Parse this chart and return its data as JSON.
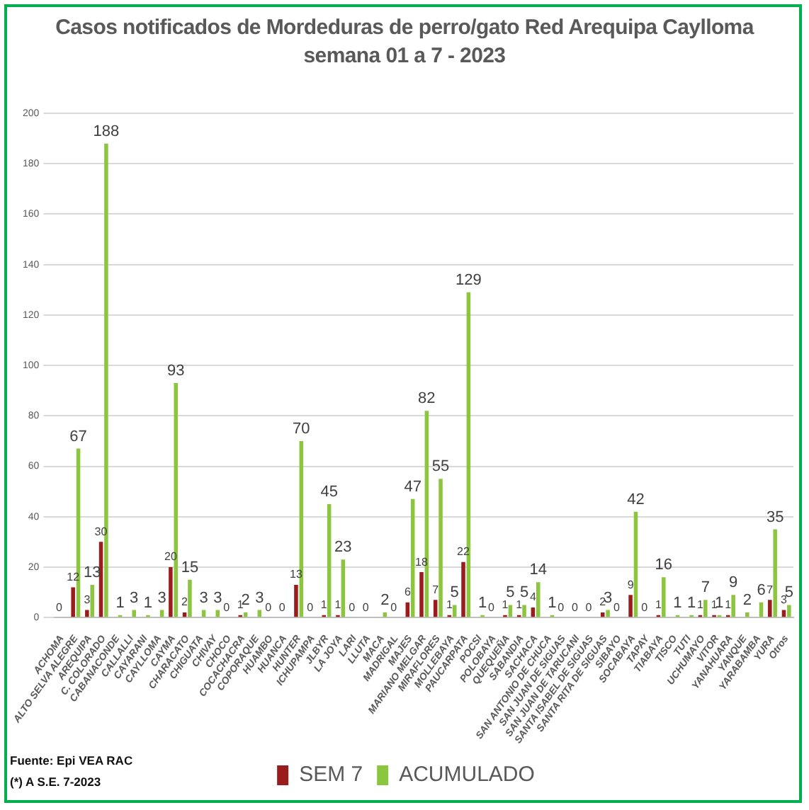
{
  "chart_data": {
    "type": "bar",
    "title": "Casos notificados de Mordeduras de perro/gato Red Arequipa Caylloma",
    "subtitle": "semana 01 a 7 - 2023",
    "categories": [
      "ACHOMA",
      "ALTO SELVA ALEGRE",
      "AREQUIPA",
      "C. COLORADO",
      "CABANACONDE",
      "CALLALLI",
      "CAYARANI",
      "CAYLLOMA",
      "CAYMA",
      "CHARACATO",
      "CHIGUATA",
      "CHIVAY",
      "CHOCO",
      "COCACHACRA",
      "COPORAQUE",
      "HUAMBO",
      "HUANCA",
      "HUNTER",
      "ICHUPAMPA",
      "JLBYR",
      "LA JOYA",
      "LARI",
      "LLUTA",
      "MACA",
      "MADRIGAL",
      "MAJES",
      "MARIANO MELGAR",
      "MIRAFLORES",
      "MOLLEBAYA",
      "PAUCARPATA",
      "POCSI",
      "POLOBAYA",
      "QUEQUEÑA",
      "SABANDIA",
      "SACHACA",
      "SAN ANTONIO DE CHUCA",
      "SAN JUAN DE SIGUAS",
      "SAN JUAN DE TARUCANI",
      "SANTA ISABEL DE SIGUAS",
      "SANTA RITA DE SIGUAS",
      "SIBAYO",
      "SOCABAYA",
      "TAPAY",
      "TIABAYA",
      "TISCO",
      "TUTI",
      "UCHUMAYO",
      "VITOR",
      "YANAHUARA",
      "YANQUE",
      "YARABAMBA",
      "YURA",
      "Otros"
    ],
    "series": [
      {
        "name": "SEM 7",
        "color": "#9b1c1c",
        "values": [
          0,
          12,
          3,
          30,
          0,
          0,
          0,
          0,
          20,
          2,
          0,
          0,
          0,
          1,
          0,
          0,
          0,
          13,
          0,
          1,
          1,
          0,
          0,
          0,
          0,
          6,
          18,
          7,
          1,
          22,
          0,
          0,
          1,
          1,
          4,
          0,
          0,
          0,
          0,
          2,
          0,
          9,
          0,
          1,
          0,
          0,
          1,
          1,
          1,
          0,
          0,
          7,
          3
        ],
        "value_labels": [
          "0",
          "12",
          "3",
          "30",
          null,
          null,
          null,
          null,
          "20",
          "2",
          null,
          null,
          "0",
          "1",
          null,
          "0",
          "0",
          "13",
          "0",
          "1",
          "1",
          "0",
          "0",
          null,
          "0",
          "6",
          "18",
          "7",
          "1",
          "22",
          null,
          "0",
          "1",
          "1",
          "4",
          null,
          "0",
          "0",
          "0",
          "2",
          "0",
          "9",
          "0",
          "1",
          null,
          null,
          "1",
          "1",
          "1",
          null,
          null,
          "7",
          "3"
        ]
      },
      {
        "name": "ACUMULADO",
        "color": "#8cc63f",
        "values": [
          0,
          67,
          13,
          188,
          1,
          3,
          1,
          3,
          93,
          15,
          3,
          3,
          0,
          2,
          3,
          0,
          0,
          70,
          0,
          45,
          23,
          0,
          0,
          2,
          0,
          47,
          82,
          55,
          5,
          129,
          1,
          0,
          5,
          5,
          14,
          1,
          0,
          0,
          0,
          3,
          0,
          42,
          0,
          16,
          1,
          1,
          7,
          1,
          9,
          2,
          6,
          35,
          5
        ],
        "value_labels": [
          null,
          "67",
          "13",
          "188",
          "1",
          "3",
          "1",
          "3",
          "93",
          "15",
          "3",
          "3",
          null,
          "2",
          "3",
          null,
          null,
          "70",
          null,
          "45",
          "23",
          null,
          null,
          "2",
          null,
          "47",
          "82",
          "55",
          "5",
          "129",
          "1",
          null,
          "5",
          "5",
          "14",
          "1",
          null,
          null,
          null,
          "3",
          null,
          "42",
          null,
          "16",
          "1",
          "1",
          "7",
          "1",
          "9",
          "2",
          "6",
          "35",
          "5"
        ]
      }
    ],
    "ylim": [
      0,
      200
    ],
    "yticks": [
      0,
      20,
      40,
      60,
      80,
      100,
      120,
      140,
      160,
      180,
      200
    ],
    "grid": "y",
    "legend": "bottom",
    "annotations": [
      "Fuente: Epi VEA RAC",
      "(*) A S.E. 7-2023"
    ]
  }
}
